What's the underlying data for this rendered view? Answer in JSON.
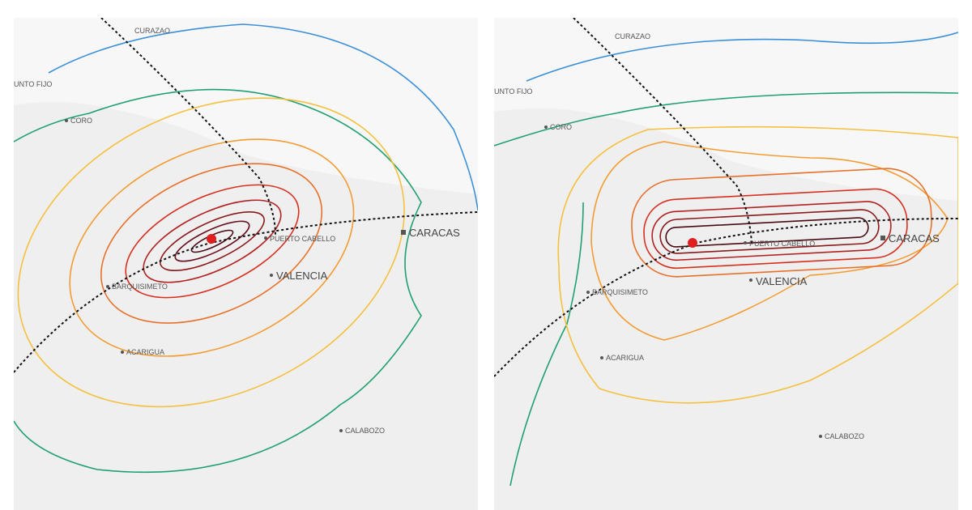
{
  "panels": [
    {
      "labels": {
        "curazao": "CURAZAO",
        "punto_fijo": "UNTO FIJO",
        "coro": "CORO",
        "puerto_cabello": "PUERTO CABELLO",
        "caracas": "CARACAS",
        "valencia": "VALENCIA",
        "barquisimeto": "BARQUISIMETO",
        "acarigua": "ACARIGUA",
        "calabozo": "CALABOZO"
      }
    },
    {
      "labels": {
        "curazao": "CURAZAO",
        "punto_fijo": "UNTO FIJO",
        "coro": "CORO",
        "puerto_cabello": "PUERTO CABELLO",
        "caracas": "CARACAS",
        "valencia": "VALENCIA",
        "barquisimeto": "BARQUISIMETO",
        "acarigua": "ACARIGUA",
        "calabozo": "CALABOZO"
      }
    }
  ]
}
